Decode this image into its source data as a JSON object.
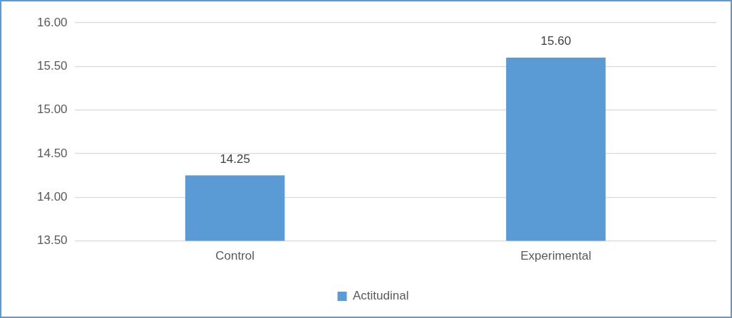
{
  "chart_data": {
    "type": "bar",
    "categories": [
      "Control",
      "Experimental"
    ],
    "series": [
      {
        "name": "Actitudinal",
        "color": "#5b9bd5",
        "values": [
          14.25,
          15.6
        ],
        "value_labels": [
          "14.25",
          "15.60"
        ]
      }
    ],
    "ylim": [
      13.5,
      16
    ],
    "yticks": [
      {
        "value": 13.5,
        "label": "13.50"
      },
      {
        "value": 14,
        "label": "14.00"
      },
      {
        "value": 14.5,
        "label": "14.50"
      },
      {
        "value": 15,
        "label": "15.00"
      },
      {
        "value": 15.5,
        "label": "15.50"
      },
      {
        "value": 16,
        "label": "16.00"
      }
    ],
    "grid": "y",
    "legend": "bottom"
  }
}
